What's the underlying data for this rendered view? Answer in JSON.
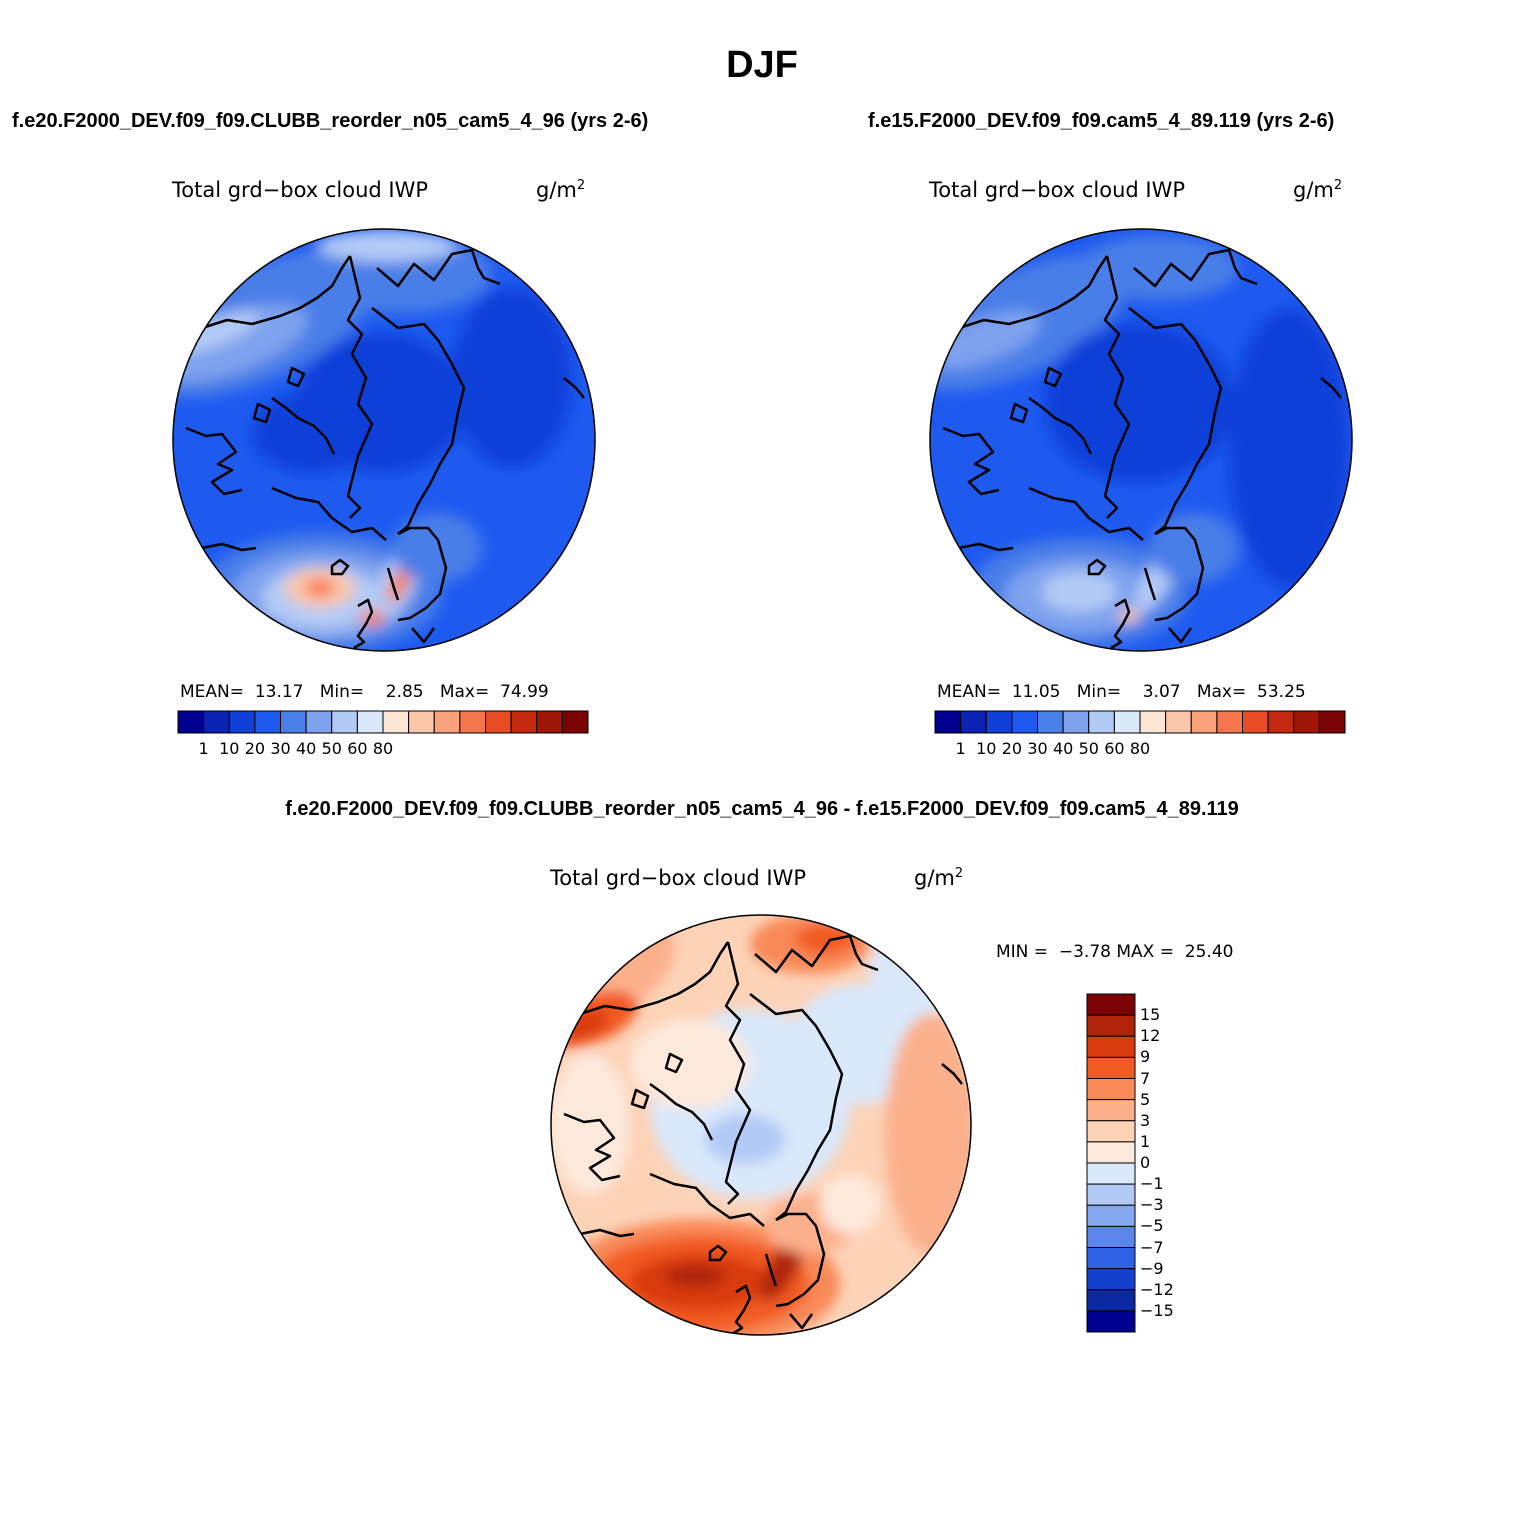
{
  "title": "DJF",
  "panels": [
    {
      "case": "f.e20.F2000_DEV.f09_f09.CLUBB_reorder_n05_cam5_4_96 (yrs 2-6)",
      "variable": "Total grd−box cloud IWP",
      "units": "g/m",
      "units_exp": "2",
      "stats": {
        "mean_label": "MEAN=",
        "mean": "13.17",
        "min_label": "Min=",
        "min": "2.85",
        "max_label": "Max=",
        "max": "74.99"
      }
    },
    {
      "case": "f.e15.F2000_DEV.f09_f09.cam5_4_89.119 (yrs 2-6)",
      "variable": "Total grd−box cloud IWP",
      "units": "g/m",
      "units_exp": "2",
      "stats": {
        "mean_label": "MEAN=",
        "mean": "11.05",
        "min_label": "Min=",
        "min": "3.07",
        "max_label": "Max=",
        "max": "53.25"
      }
    }
  ],
  "colorbar": {
    "colors": [
      "#000090",
      "#0a23b4",
      "#1040d8",
      "#1e5af0",
      "#4a7ee8",
      "#7ea2ee",
      "#b2cbf6",
      "#d9e8fb",
      "#fde6d4",
      "#fcc7a9",
      "#fba27c",
      "#f6774d",
      "#e64b24",
      "#c4280f",
      "#a01606",
      "#7a0403"
    ],
    "labels": [
      "1",
      "10",
      "20",
      "30",
      "40",
      "50",
      "60",
      "80"
    ]
  },
  "diff": {
    "title": "f.e20.F2000_DEV.f09_f09.CLUBB_reorder_n05_cam5_4_96 - f.e15.F2000_DEV.f09_f09.cam5_4_89.119",
    "variable": "Total grd−box cloud IWP",
    "units": "g/m",
    "units_exp": "2",
    "min_label": "MIN =",
    "min": "−3.78",
    "max_label": "MAX =",
    "max": "25.40",
    "colorbar": {
      "colors": [
        "#7a0403",
        "#b02508",
        "#d93a0f",
        "#f25a24",
        "#f98a58",
        "#fbb08c",
        "#fdd3b8",
        "#fde9dc",
        "#d9e8fb",
        "#b2cbf6",
        "#86a8ee",
        "#5a86ea",
        "#2f62e6",
        "#1340cc",
        "#0a28a0",
        "#000090"
      ],
      "labels": [
        "15",
        "12",
        "9",
        "7",
        "5",
        "3",
        "1",
        "0",
        "−1",
        "−3",
        "−5",
        "−7",
        "−9",
        "−12",
        "−15"
      ]
    }
  }
}
